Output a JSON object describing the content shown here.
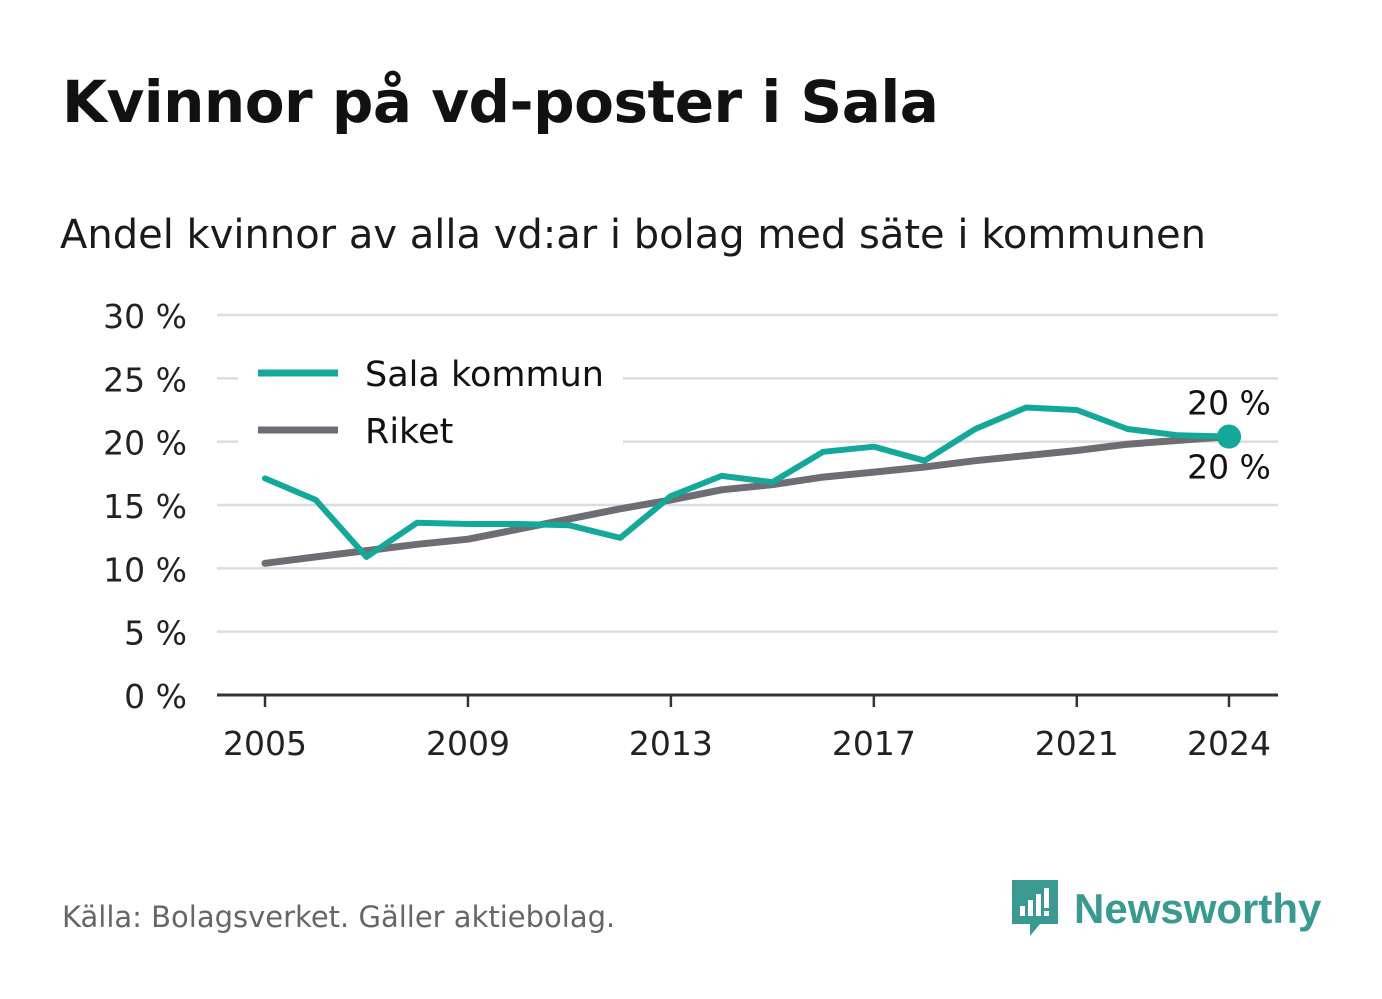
{
  "title": "Kvinnor på vd-poster i Sala",
  "subtitle": "Andel kvinnor av alla vd:ar i bolag med säte i kommunen",
  "source": "Källa: Bolagsverket. Gäller aktiebolag.",
  "brand": {
    "name": "Newsworthy",
    "logo_icon": "newsworthy-logo-icon"
  },
  "colors": {
    "sala": "#14a89a",
    "riket": "#6e6d73",
    "grid": "#dddddd",
    "axis": "#333333"
  },
  "chart_data": {
    "type": "line",
    "x": [
      2005,
      2006,
      2007,
      2008,
      2009,
      2010,
      2011,
      2012,
      2013,
      2014,
      2015,
      2016,
      2017,
      2018,
      2019,
      2020,
      2021,
      2022,
      2023,
      2024
    ],
    "x_tick_labels": [
      "2005",
      "2009",
      "2013",
      "2017",
      "2021",
      "2024"
    ],
    "x_ticks": [
      2005,
      2009,
      2013,
      2017,
      2021,
      2024
    ],
    "y_tick_labels": [
      "0 %",
      "5 %",
      "10 %",
      "15 %",
      "20 %",
      "25 %",
      "30 %"
    ],
    "y_ticks": [
      0,
      5,
      10,
      15,
      20,
      25,
      30
    ],
    "ylim": [
      0,
      30
    ],
    "xlim": [
      2005,
      2024
    ],
    "grid": true,
    "legend": "top-left",
    "series": [
      {
        "name": "Sala kommun",
        "color": "#14a89a",
        "values": [
          17.1,
          15.4,
          10.9,
          13.6,
          13.5,
          13.5,
          13.4,
          12.4,
          15.7,
          17.3,
          16.8,
          19.2,
          19.6,
          18.5,
          21.0,
          22.7,
          22.5,
          21.0,
          20.5,
          20.4
        ]
      },
      {
        "name": "Riket",
        "color": "#6e6d73",
        "values": [
          10.4,
          10.9,
          11.4,
          11.9,
          12.3,
          13.1,
          13.9,
          14.7,
          15.4,
          16.2,
          16.6,
          17.2,
          17.6,
          18.0,
          18.5,
          18.9,
          19.3,
          19.8,
          20.1,
          20.4
        ]
      }
    ],
    "end_labels": [
      {
        "series": "Sala kommun",
        "text": "20 %",
        "position": "above"
      },
      {
        "series": "Riket",
        "text": "20 %",
        "position": "below"
      }
    ]
  }
}
